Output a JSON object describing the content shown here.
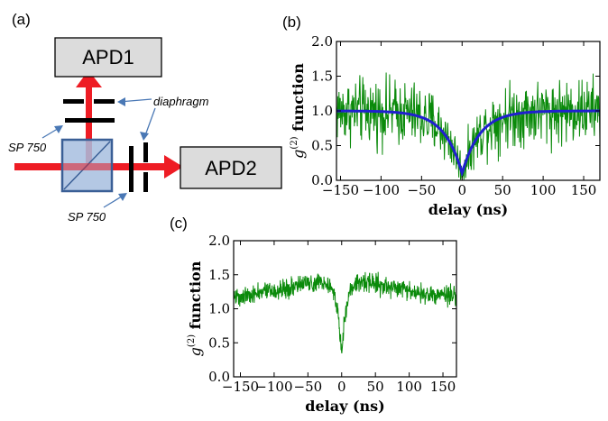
{
  "panels": {
    "a": "(a)",
    "b": "(b)",
    "c": "(c)"
  },
  "setup": {
    "apd1": "APD1",
    "apd2": "APD2",
    "diaphragm": "diaphragm",
    "filter_top": "SP 750",
    "filter_bottom": "SP 750",
    "colors": {
      "beam": "#ee1c24",
      "cube": "#a7bedf",
      "cube_edge": "#3a5f96",
      "box": "#dcdcdc"
    }
  },
  "chart_data": [
    {
      "id": "b",
      "type": "line",
      "xlabel": "delay (ns)",
      "ylabel_base": "g",
      "ylabel_sup": "(2)",
      "ylabel_rest": " function",
      "xlim": [
        -155,
        170
      ],
      "ylim": [
        0.0,
        2.0
      ],
      "xticks": [
        -150,
        -100,
        -50,
        0,
        50,
        100,
        150
      ],
      "yticks": [
        0.0,
        0.5,
        1.0,
        1.5,
        2.0
      ],
      "xtick_labels": [
        "−150",
        "−100",
        "−50",
        "0",
        "50",
        "100",
        "150"
      ],
      "ytick_labels": [
        "0.0",
        "0.5",
        "1.0",
        "1.5",
        "2.0"
      ],
      "series": [
        {
          "kind": "noisy-data",
          "color": "#0a8a0a",
          "baseline": 1.0,
          "dip_depth": 0.9,
          "tau": 22,
          "noise": 0.23
        },
        {
          "kind": "fit",
          "color": "#1f1fcf",
          "baseline": 1.0,
          "dip_depth": 0.9,
          "tau": 22
        }
      ]
    },
    {
      "id": "c",
      "type": "line",
      "xlabel": "delay (ns)",
      "ylabel_base": "g",
      "ylabel_sup": "(2)",
      "ylabel_rest": " function",
      "xlim": [
        -160,
        170
      ],
      "ylim": [
        0.0,
        2.0
      ],
      "xticks": [
        -150,
        -100,
        -50,
        0,
        50,
        100,
        150
      ],
      "yticks": [
        0.0,
        0.5,
        1.0,
        1.5,
        2.0
      ],
      "xtick_labels": [
        "−150",
        "−100",
        "−50",
        "0",
        "50",
        "100",
        "150"
      ],
      "ytick_labels": [
        "0.0",
        "0.5",
        "1.0",
        "1.5",
        "2.0"
      ],
      "series": [
        {
          "kind": "noisy-data",
          "color": "#0a8a0a",
          "baseline": 1.05,
          "bunch_amp": 0.55,
          "bunch_tau": 120,
          "dip_depth": 1.2,
          "tau": 8,
          "noise": 0.07
        }
      ]
    }
  ]
}
